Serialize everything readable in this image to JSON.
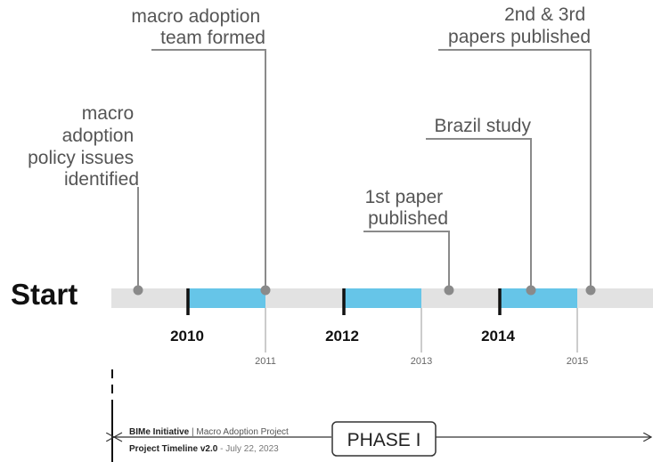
{
  "start_label": "Start",
  "events": [
    {
      "lines": [
        "macro",
        "adoption",
        "policy issues",
        "identified"
      ]
    },
    {
      "lines": [
        "macro adoption",
        "team formed"
      ]
    },
    {
      "lines": [
        "1st paper",
        "published"
      ]
    },
    {
      "lines": [
        "Brazil study"
      ]
    },
    {
      "lines": [
        "2nd & 3rd",
        "papers published"
      ]
    }
  ],
  "major_years": [
    "2010",
    "2012",
    "2014"
  ],
  "minor_years": [
    "2011",
    "2013",
    "2015"
  ],
  "footer": {
    "org": "BIMe Initiative",
    "project": "| Macro Adoption Project",
    "doc": "Project Timeline v2.0",
    "date": "- July 22, 2023",
    "phase": "PHASE I"
  }
}
